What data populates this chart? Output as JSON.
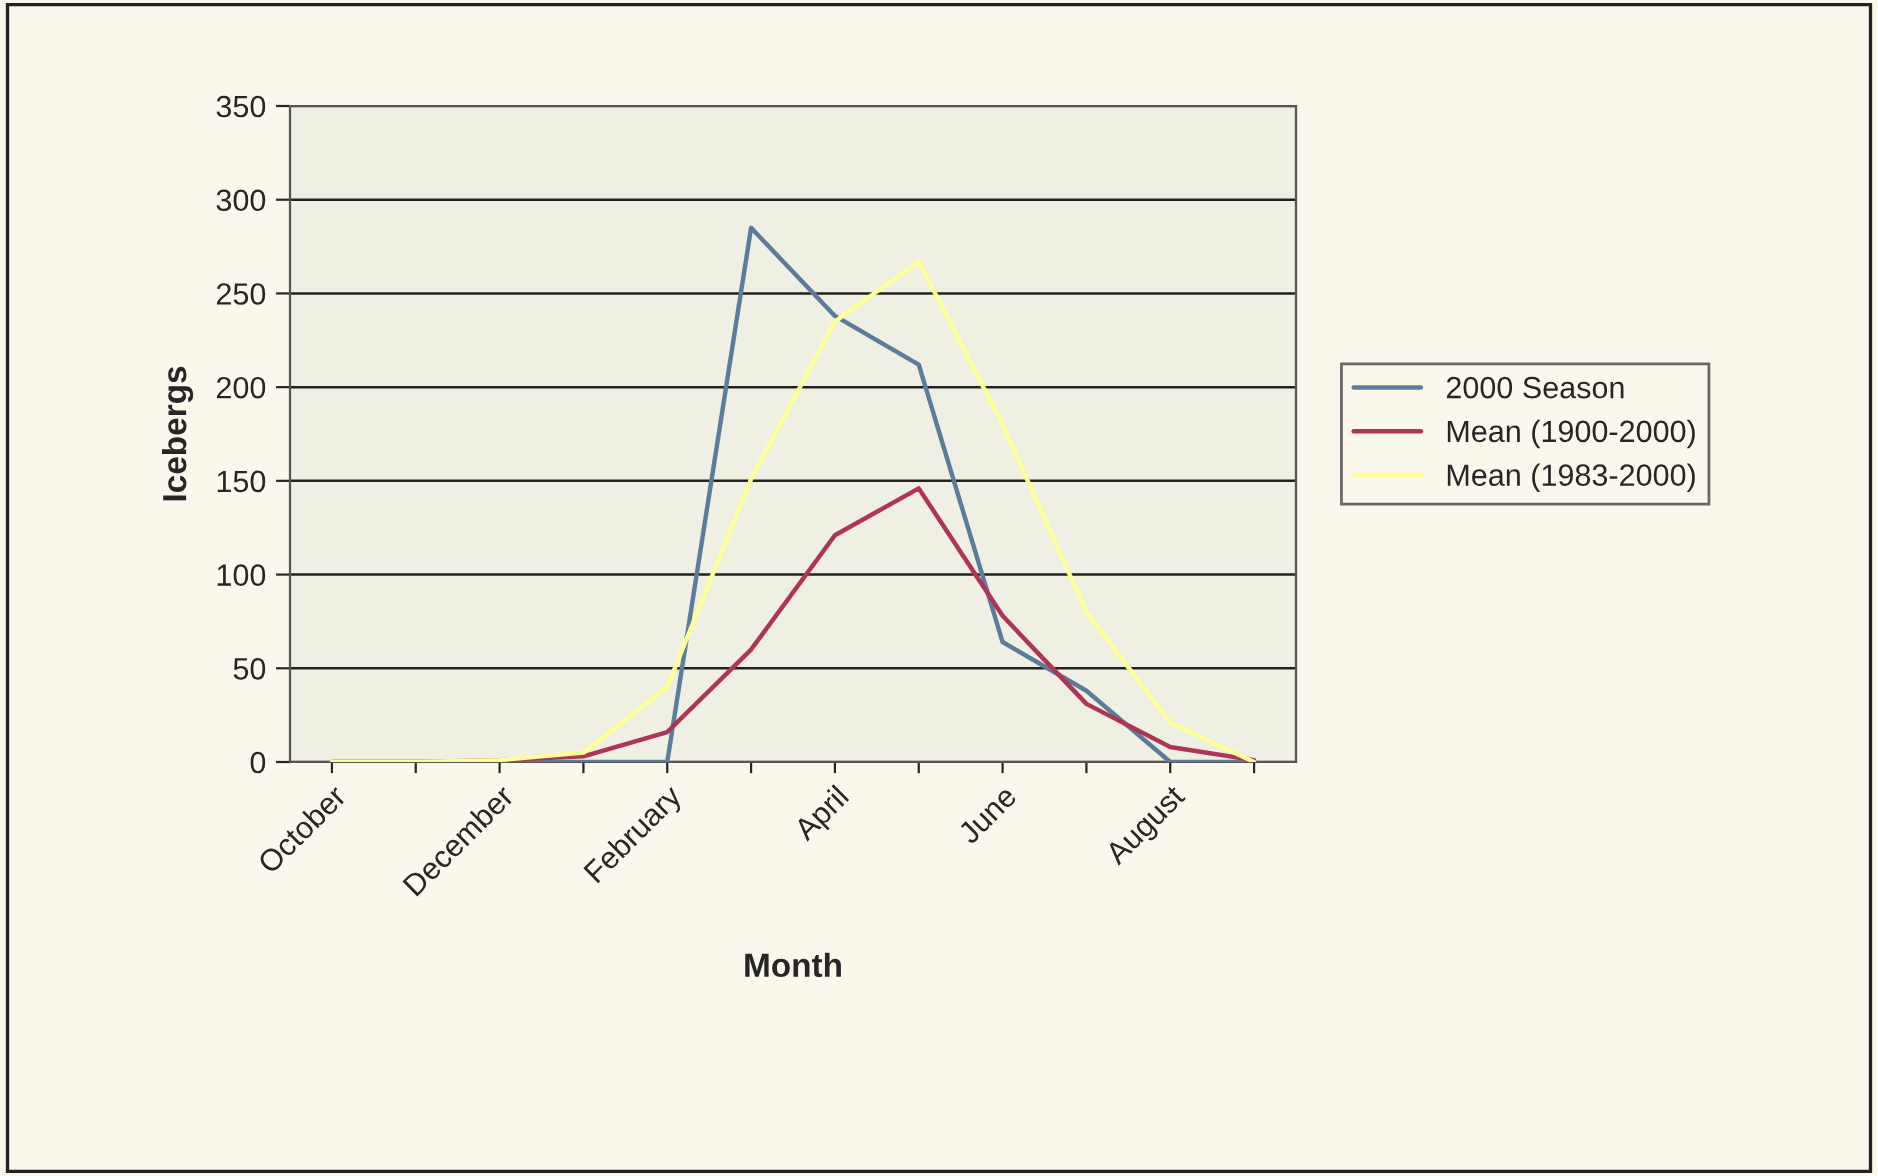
{
  "chart_data": {
    "type": "line",
    "xlabel": "Month",
    "ylabel": "Icebergs",
    "categories": [
      "October",
      null,
      "December",
      null,
      "February",
      null,
      "April",
      null,
      "June",
      null,
      "August",
      null
    ],
    "series": [
      {
        "name": "2000 Season",
        "color": "#5b7d9c",
        "values": [
          0,
          0,
          0,
          0,
          0,
          285,
          238,
          212,
          64,
          38,
          0,
          0
        ]
      },
      {
        "name": "Mean (1900-2000)",
        "color": "#b03455",
        "values": [
          0,
          0,
          1,
          3,
          16,
          60,
          121,
          146,
          78,
          31,
          8,
          1
        ]
      },
      {
        "name": "Mean (1983-2000)",
        "color": "#ffff99",
        "values": [
          0,
          0,
          1,
          5,
          40,
          151,
          235,
          267,
          180,
          80,
          21,
          0
        ]
      }
    ],
    "ylim": [
      0,
      350
    ],
    "yticks": [
      0,
      50,
      100,
      150,
      200,
      250,
      300,
      350
    ],
    "grid": "y",
    "legend": "right",
    "marker": "none",
    "line_style": "solid"
  }
}
